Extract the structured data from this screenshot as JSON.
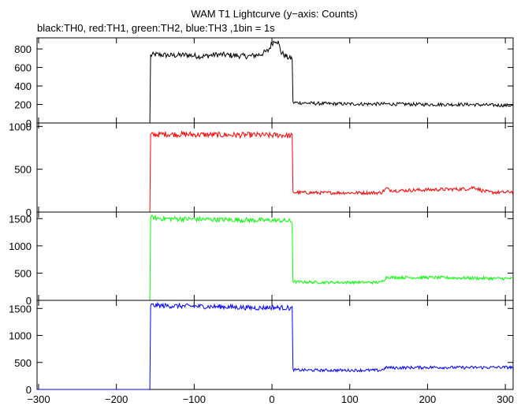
{
  "title": "WAM T1 Lightcurve (y−axis: Counts)",
  "subtitle": "black:TH0, red:TH1, green:TH2, blue:TH3 ,1bin = 1s",
  "chart_data": [
    {
      "type": "line",
      "series_label": "TH0",
      "color": "#000000",
      "xlim": [
        -302,
        310
      ],
      "ylim": [
        0,
        920
      ],
      "y_ticks": [
        0,
        200,
        400,
        600,
        800
      ],
      "y_tick_labels": [
        "0",
        "200",
        "400",
        "600",
        "800"
      ],
      "x": [
        -302,
        -157,
        -156,
        -150,
        -130,
        -110,
        -90,
        -70,
        -50,
        -30,
        -15,
        -5,
        0,
        5,
        8,
        12,
        18,
        22,
        26,
        27,
        30,
        60,
        100,
        150,
        200,
        250,
        300,
        310
      ],
      "y": [
        0,
        0,
        730,
        740,
        730,
        735,
        720,
        740,
        730,
        720,
        740,
        780,
        860,
        900,
        870,
        760,
        720,
        700,
        700,
        220,
        220,
        210,
        205,
        205,
        200,
        200,
        190,
        190
      ]
    },
    {
      "type": "line",
      "series_label": "TH1",
      "color": "#ff0000",
      "xlim": [
        -302,
        310
      ],
      "ylim": [
        0,
        1040
      ],
      "y_ticks": [
        0,
        500,
        1000
      ],
      "y_tick_labels": [
        "0",
        "500",
        "1000"
      ],
      "x": [
        -302,
        -157,
        -156,
        -140,
        -100,
        -60,
        -20,
        0,
        10,
        26,
        27,
        30,
        60,
        100,
        140,
        148,
        150,
        160,
        200,
        250,
        260,
        270,
        280,
        300,
        310
      ],
      "y": [
        0,
        0,
        900,
        910,
        905,
        900,
        900,
        895,
        900,
        890,
        230,
        230,
        225,
        225,
        225,
        280,
        260,
        250,
        260,
        270,
        290,
        250,
        230,
        230,
        240
      ]
    },
    {
      "type": "line",
      "series_label": "TH2",
      "color": "#00ff00",
      "xlim": [
        -302,
        310
      ],
      "ylim": [
        0,
        1620
      ],
      "y_ticks": [
        0,
        500,
        1000,
        1500
      ],
      "y_tick_labels": [
        "0",
        "500",
        "1000",
        "1500"
      ],
      "x": [
        -302,
        -157,
        -156,
        -140,
        -100,
        -60,
        -20,
        0,
        20,
        26,
        27,
        30,
        60,
        100,
        140,
        148,
        155,
        200,
        250,
        300,
        310
      ],
      "y": [
        0,
        0,
        1520,
        1500,
        1490,
        1480,
        1470,
        1470,
        1460,
        1440,
        350,
        340,
        330,
        330,
        330,
        430,
        420,
        420,
        410,
        400,
        400
      ]
    },
    {
      "type": "line",
      "series_label": "TH3",
      "color": "#0000ff",
      "xlim": [
        -302,
        310
      ],
      "ylim": [
        0,
        1650
      ],
      "y_ticks": [
        0,
        500,
        1000,
        1500
      ],
      "y_tick_labels": [
        "0",
        "500",
        "1000",
        "1500"
      ],
      "x_ticks": [
        -300,
        -200,
        -100,
        0,
        100,
        200,
        300
      ],
      "x_tick_labels": [
        "−300",
        "−200",
        "−100",
        "0",
        "100",
        "200",
        "300"
      ],
      "x": [
        -302,
        -157,
        -156,
        -140,
        -100,
        -60,
        -20,
        0,
        20,
        26,
        27,
        30,
        60,
        100,
        140,
        148,
        155,
        200,
        250,
        300,
        310
      ],
      "y": [
        0,
        0,
        1560,
        1550,
        1540,
        1530,
        1510,
        1520,
        1510,
        1500,
        370,
        360,
        355,
        355,
        355,
        410,
        400,
        410,
        405,
        410,
        410
      ]
    }
  ]
}
